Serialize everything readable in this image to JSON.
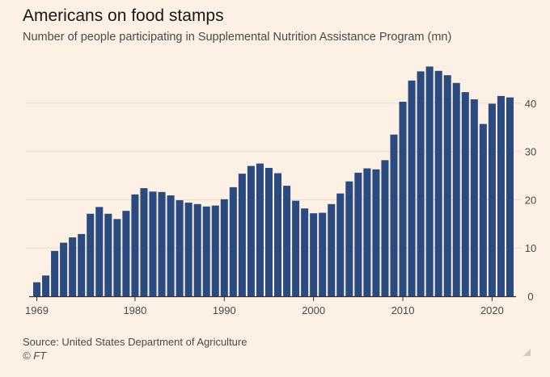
{
  "title": "Americans on food stamps",
  "subtitle": "Number of people participating in Supplemental Nutrition Assistance Program (mn)",
  "source": "Source: United States Department of Agriculture",
  "credit": "© FT",
  "colors": {
    "background": "#fdf1e6",
    "bar": "#2b4b80",
    "gridline": "#e8dcd1",
    "axis": "#33302e"
  },
  "chart_data": {
    "type": "bar",
    "title": "Americans on food stamps",
    "subtitle": "Number of people participating in Supplemental Nutrition Assistance Program (mn)",
    "xlabel": "",
    "ylabel": "",
    "ylim": [
      0,
      47
    ],
    "yticks": [
      0,
      10,
      20,
      30,
      40
    ],
    "xticks": [
      1969,
      1980,
      1990,
      2000,
      2010,
      2020
    ],
    "y_axis_side": "right",
    "grid": true,
    "categories": [
      1969,
      1970,
      1971,
      1972,
      1973,
      1974,
      1975,
      1976,
      1977,
      1978,
      1979,
      1980,
      1981,
      1982,
      1983,
      1984,
      1985,
      1986,
      1987,
      1988,
      1989,
      1990,
      1991,
      1992,
      1993,
      1994,
      1995,
      1996,
      1997,
      1998,
      1999,
      2000,
      2001,
      2002,
      2003,
      2004,
      2005,
      2006,
      2007,
      2008,
      2009,
      2010,
      2011,
      2012,
      2013,
      2014,
      2015,
      2016,
      2017,
      2018,
      2019,
      2020,
      2021,
      2022
    ],
    "values": [
      2.9,
      4.3,
      9.4,
      11.1,
      12.2,
      12.9,
      17.1,
      18.5,
      17.1,
      16.0,
      17.7,
      21.1,
      22.4,
      21.7,
      21.6,
      20.9,
      19.9,
      19.4,
      19.1,
      18.6,
      18.8,
      20.1,
      22.6,
      25.4,
      27.0,
      27.5,
      26.6,
      25.5,
      22.9,
      19.8,
      18.2,
      17.2,
      17.3,
      19.1,
      21.3,
      23.8,
      25.6,
      26.5,
      26.3,
      28.2,
      33.5,
      40.3,
      44.7,
      46.6,
      47.6,
      46.7,
      45.8,
      44.2,
      42.3,
      40.8,
      35.7,
      39.9,
      41.5,
      41.2
    ]
  }
}
